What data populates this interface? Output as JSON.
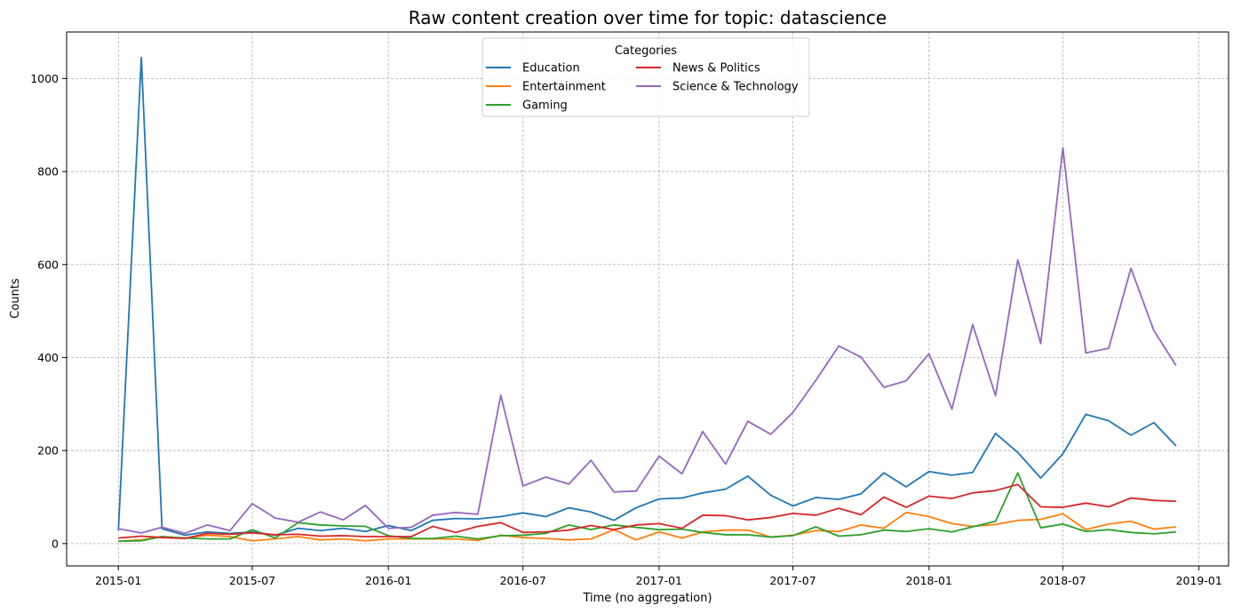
{
  "chart_data": {
    "type": "line",
    "title": "Raw content creation over time for topic: datascience",
    "xlabel": "Time (no aggregation)",
    "ylabel": "Counts",
    "grid": true,
    "legend": {
      "title": "Categories",
      "placement": "upper-center",
      "columns": 2
    },
    "xlim": [
      "2014-10-23",
      "2019-02-10"
    ],
    "ylim": [
      -48,
      1100
    ],
    "xticks": [
      "2015-01",
      "2015-07",
      "2016-01",
      "2016-07",
      "2017-01",
      "2017-07",
      "2018-01",
      "2018-07",
      "2019-01"
    ],
    "xtick_dates": [
      "2015-01-01",
      "2015-07-01",
      "2016-01-01",
      "2016-07-01",
      "2017-01-01",
      "2017-07-01",
      "2018-01-01",
      "2018-07-01",
      "2019-01-01"
    ],
    "yticks": [
      0,
      200,
      400,
      600,
      800,
      1000
    ],
    "x": [
      "2015-01-01",
      "2015-02-01",
      "2015-03-01",
      "2015-04-01",
      "2015-05-01",
      "2015-06-01",
      "2015-07-01",
      "2015-08-01",
      "2015-09-01",
      "2015-10-01",
      "2015-11-01",
      "2015-12-01",
      "2016-01-01",
      "2016-02-01",
      "2016-03-01",
      "2016-04-01",
      "2016-05-01",
      "2016-06-01",
      "2016-07-01",
      "2016-08-01",
      "2016-09-01",
      "2016-10-01",
      "2016-11-01",
      "2016-12-01",
      "2017-01-01",
      "2017-02-01",
      "2017-03-01",
      "2017-04-01",
      "2017-05-01",
      "2017-06-01",
      "2017-07-01",
      "2017-08-01",
      "2017-09-01",
      "2017-10-01",
      "2017-11-01",
      "2017-12-01",
      "2018-01-01",
      "2018-02-01",
      "2018-03-01",
      "2018-04-01",
      "2018-05-01",
      "2018-06-01",
      "2018-07-01",
      "2018-08-01",
      "2018-09-01",
      "2018-10-01",
      "2018-11-01",
      "2018-12-01"
    ],
    "series": [
      {
        "name": "Education",
        "color": "#1f77b4",
        "values": [
          28,
          1045,
          32,
          18,
          25,
          22,
          25,
          18,
          33,
          28,
          33,
          26,
          39,
          28,
          50,
          54,
          53,
          58,
          66,
          58,
          77,
          68,
          50,
          77,
          96,
          98,
          109,
          117,
          145,
          104,
          81,
          99,
          95,
          107,
          152,
          122,
          155,
          147,
          153,
          237,
          196,
          141,
          193,
          278,
          264,
          233,
          260,
          210
        ]
      },
      {
        "name": "Entertainment",
        "color": "#ff7f0e",
        "values": [
          5,
          8,
          15,
          12,
          18,
          15,
          6,
          10,
          15,
          8,
          10,
          6,
          10,
          10,
          10,
          10,
          7,
          18,
          13,
          11,
          8,
          10,
          30,
          8,
          25,
          12,
          25,
          29,
          29,
          14,
          18,
          28,
          26,
          40,
          33,
          67,
          58,
          43,
          37,
          41,
          50,
          52,
          64,
          30,
          42,
          48,
          31,
          36
        ]
      },
      {
        "name": "Gaming",
        "color": "#2ca02c",
        "values": [
          5,
          6,
          15,
          12,
          10,
          10,
          30,
          12,
          45,
          40,
          38,
          37,
          17,
          11,
          11,
          16,
          10,
          17,
          18,
          22,
          40,
          30,
          40,
          35,
          30,
          31,
          24,
          19,
          19,
          14,
          17,
          36,
          16,
          19,
          29,
          26,
          32,
          25,
          36,
          48,
          152,
          34,
          42,
          26,
          30,
          24,
          21,
          25
        ]
      },
      {
        "name": "News & Politics",
        "color": "#d62728",
        "values": [
          12,
          16,
          13,
          11,
          22,
          20,
          23,
          19,
          20,
          16,
          17,
          15,
          15,
          15,
          37,
          24,
          37,
          45,
          24,
          25,
          29,
          39,
          30,
          40,
          43,
          33,
          61,
          60,
          51,
          56,
          65,
          61,
          76,
          62,
          100,
          78,
          102,
          97,
          109,
          114,
          127,
          79,
          78,
          87,
          79,
          98,
          93,
          91
        ]
      },
      {
        "name": "Science & Technology",
        "color": "#9467bd",
        "values": [
          32,
          23,
          35,
          22,
          40,
          28,
          86,
          55,
          46,
          68,
          51,
          82,
          33,
          35,
          61,
          67,
          63,
          319,
          124,
          143,
          128,
          179,
          111,
          113,
          188,
          150,
          241,
          171,
          263,
          235,
          282,
          351,
          425,
          401,
          336,
          350,
          408,
          289,
          471,
          318,
          610,
          430,
          851,
          410,
          420,
          592,
          458,
          383
        ]
      }
    ]
  }
}
